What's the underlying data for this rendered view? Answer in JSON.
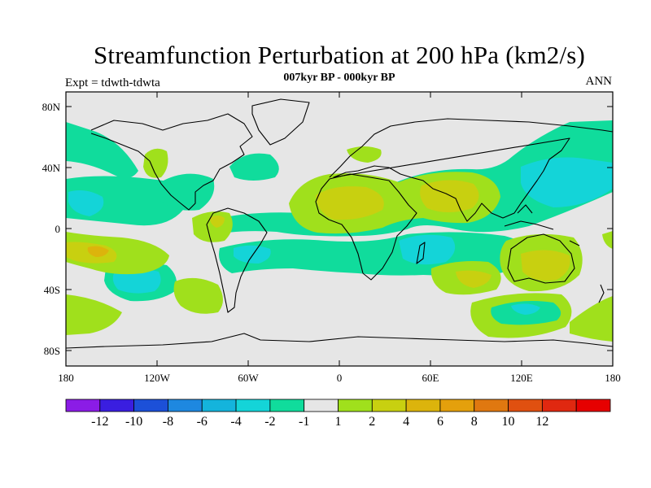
{
  "title": "Streamfunction Perturbation at 200 hPa (km2/s)",
  "experiment": "Expt = tdwth-tdwta",
  "period": "007kyr BP - 000kyr BP",
  "season": "ANN",
  "axes": {
    "lat_ticks": [
      "80N",
      "40N",
      "0",
      "40S",
      "80S"
    ],
    "lon_ticks": [
      "180",
      "120W",
      "60W",
      "0",
      "60E",
      "120E",
      "180"
    ]
  },
  "colorbar": {
    "colors": [
      "#8b1ce6",
      "#3a1ee0",
      "#1c50d8",
      "#1e88e0",
      "#14b4dc",
      "#14d4d8",
      "#10dc9c",
      "#e6e6e6",
      "#a0e01c",
      "#c8d010",
      "#dcb40c",
      "#e4a00c",
      "#e07810",
      "#e05010",
      "#e02810",
      "#e60000"
    ],
    "labels": [
      "-12",
      "-10",
      "-8",
      "-6",
      "-4",
      "-2",
      "-1",
      "1",
      "2",
      "4",
      "6",
      "8",
      "10",
      "12"
    ]
  },
  "field_colors": {
    "neutral": "#e6e6e6",
    "neg1": "#10dc9c",
    "neg2": "#14d4d8",
    "pos1": "#a0e01c",
    "pos2": "#c8d010",
    "pos3": "#dcb40c"
  }
}
